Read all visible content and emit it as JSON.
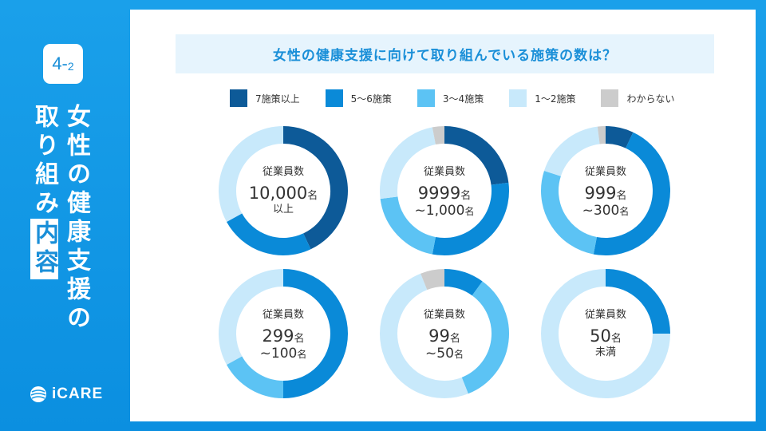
{
  "badge": {
    "main": "4-",
    "sub": "2"
  },
  "side_title": {
    "col1": "女性の健康支援の",
    "col2_a": "取り組み",
    "col2_b": "内容"
  },
  "logo": {
    "text": "iCARE",
    "icon": "globe-icon"
  },
  "title": "女性の健康支援に向けて取り組んでいる施策の数は？",
  "legend": [
    {
      "label": "7施策以上",
      "color": "#0d5a98"
    },
    {
      "label": "5〜6施策",
      "color": "#0a8ad8"
    },
    {
      "label": "3〜4施策",
      "color": "#5cc3f4"
    },
    {
      "label": "1〜2施策",
      "color": "#c8e9fb"
    },
    {
      "label": "わからない",
      "color": "#cccccc"
    }
  ],
  "chart_data": {
    "type": "pie",
    "categories": [
      "7施策以上",
      "5〜6施策",
      "3〜4施策",
      "1〜2施策",
      "わからない"
    ],
    "series": [
      {
        "label_top": "従業員数",
        "label_main": "10,000",
        "label_main_unit": "名",
        "label_sub": "以上",
        "label_sub_unit": "",
        "values": [
          43,
          24,
          0,
          33,
          0
        ]
      },
      {
        "label_top": "従業員数",
        "label_main": "9999",
        "label_main_unit": "名",
        "label_sub": "~1,000",
        "label_sub_unit": "名",
        "values": [
          23,
          30,
          20,
          24,
          3
        ]
      },
      {
        "label_top": "従業員数",
        "label_main": "999",
        "label_main_unit": "名",
        "label_sub": "~300",
        "label_sub_unit": "名",
        "values": [
          7,
          46,
          27,
          18,
          2
        ]
      },
      {
        "label_top": "従業員数",
        "label_main": "299",
        "label_main_unit": "名",
        "label_sub": "~100",
        "label_sub_unit": "名",
        "values": [
          0,
          50,
          17,
          33,
          0
        ]
      },
      {
        "label_top": "従業員数",
        "label_main": "99",
        "label_main_unit": "名",
        "label_sub": "~50",
        "label_sub_unit": "名",
        "values": [
          0,
          10,
          34,
          50,
          6
        ]
      },
      {
        "label_top": "従業員数",
        "label_main": "50",
        "label_main_unit": "名",
        "label_sub": "未満",
        "label_sub_unit": "",
        "values": [
          0,
          25,
          0,
          75,
          0
        ]
      }
    ],
    "legend_position": "top"
  }
}
